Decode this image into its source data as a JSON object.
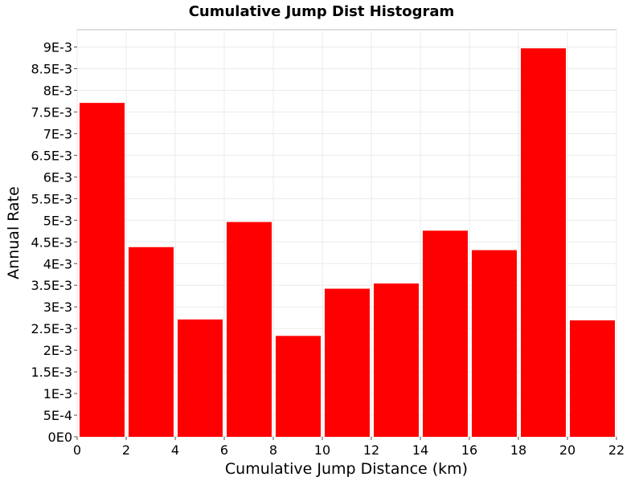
{
  "chart_data": {
    "type": "bar",
    "title": "Cumulative Jump Dist Histogram",
    "xlabel": "Cumulative Jump Distance (km)",
    "ylabel": "Annual Rate",
    "xlim": [
      0,
      22
    ],
    "ylim": [
      0,
      0.0094
    ],
    "xticks": [
      0,
      2,
      4,
      6,
      8,
      10,
      12,
      14,
      16,
      18,
      20,
      22
    ],
    "xtick_labels": [
      "0",
      "2",
      "4",
      "6",
      "8",
      "10",
      "12",
      "14",
      "16",
      "18",
      "20",
      "22"
    ],
    "yticks": [
      0,
      0.0005,
      0.001,
      0.0015,
      0.002,
      0.0025,
      0.003,
      0.0035,
      0.004,
      0.0045,
      0.005,
      0.0055,
      0.006,
      0.0065,
      0.007,
      0.0075,
      0.008,
      0.0085,
      0.009
    ],
    "ytick_labels": [
      "0E0",
      "5E-4",
      "1E-3",
      "1.5E-3",
      "2E-3",
      "2.5E-3",
      "3E-3",
      "3.5E-3",
      "4E-3",
      "4.5E-3",
      "5E-3",
      "5.5E-3",
      "6E-3",
      "6.5E-3",
      "7E-3",
      "7.5E-3",
      "8E-3",
      "8.5E-3",
      "9E-3"
    ],
    "grid": true,
    "bar_color": "#ff0000",
    "bins": [
      {
        "x0": 0,
        "x1": 2,
        "value": 0.00771
      },
      {
        "x0": 2,
        "x1": 4,
        "value": 0.00438
      },
      {
        "x0": 4,
        "x1": 6,
        "value": 0.00271
      },
      {
        "x0": 6,
        "x1": 8,
        "value": 0.00496
      },
      {
        "x0": 8,
        "x1": 10,
        "value": 0.00233
      },
      {
        "x0": 10,
        "x1": 12,
        "value": 0.00342
      },
      {
        "x0": 12,
        "x1": 14,
        "value": 0.00354
      },
      {
        "x0": 14,
        "x1": 16,
        "value": 0.00476
      },
      {
        "x0": 16,
        "x1": 18,
        "value": 0.00431
      },
      {
        "x0": 18,
        "x1": 20,
        "value": 0.00897
      },
      {
        "x0": 20,
        "x1": 22,
        "value": 0.00269
      }
    ]
  }
}
